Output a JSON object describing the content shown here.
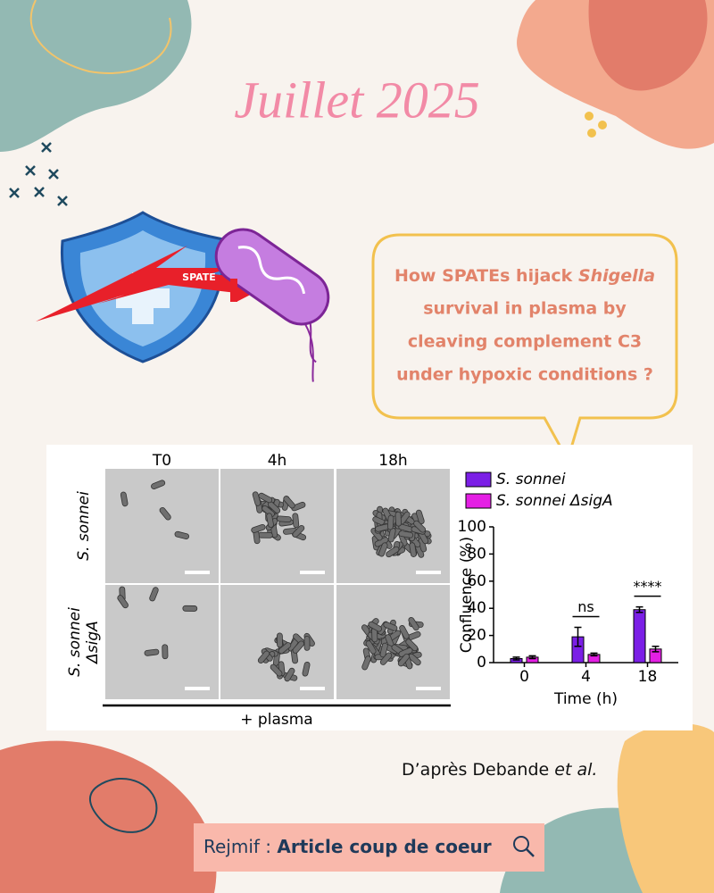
{
  "title": "Juillet 2025",
  "illustration": {
    "label": "SPATE"
  },
  "question": {
    "line1": "How SPATEs hijack",
    "line1_italic": "Shigella",
    "lines": [
      "survival in plasma by",
      "cleaving complement C3",
      "under hypoxic conditions ?"
    ]
  },
  "figure": {
    "columns": [
      "T0",
      "4h",
      "18h"
    ],
    "rows": [
      [
        "S. sonnei"
      ],
      [
        "S. sonnei",
        "ΔsigA"
      ]
    ],
    "treatment": "+ plasma"
  },
  "chart_data": {
    "type": "bar",
    "categories": [
      "0",
      "4",
      "18"
    ],
    "series": [
      {
        "name": "S. sonnei",
        "color": "#7b1fe6",
        "values": [
          3,
          19,
          39
        ],
        "errors": [
          1,
          7,
          2
        ]
      },
      {
        "name": "S. sonnei ΔsigA",
        "color": "#e41fe4",
        "values": [
          4,
          6,
          10
        ],
        "errors": [
          1,
          1,
          2
        ]
      }
    ],
    "ylim": [
      0,
      100
    ],
    "yticks": [
      0,
      20,
      40,
      60,
      80,
      100
    ],
    "ylabel": "Confluence (%)",
    "xlabel": "Time (h)",
    "annotations": [
      "ns",
      "****"
    ]
  },
  "credit": {
    "prefix": "D’après Debande ",
    "italic": "et al."
  },
  "footer": {
    "prefix": "Rejmif : ",
    "bold": "Article coup de coeur"
  }
}
